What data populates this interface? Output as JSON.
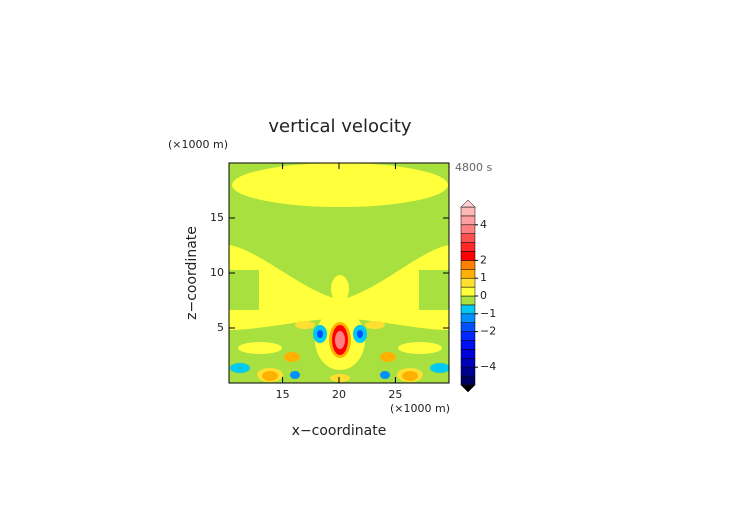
{
  "chart_data": {
    "type": "contour",
    "title": "vertical velocity",
    "time_label": "4800 s",
    "x_label": "x−coordinate",
    "y_label": "z−coordinate",
    "x_unit": "(×1000 m)",
    "y_unit": "(×1000 m)",
    "xlim": [
      10.25,
      29.75
    ],
    "ylim": [
      0,
      20
    ],
    "xticks": [
      15,
      20,
      25
    ],
    "yticks": [
      5,
      10,
      15
    ],
    "colorbar": {
      "levels": [
        -5,
        -4.5,
        -4,
        -3.5,
        -3,
        -2.5,
        -2,
        -1.5,
        -1,
        -0.5,
        0,
        0.5,
        1,
        1.5,
        2,
        2.5,
        3,
        3.5,
        4,
        4.5,
        5
      ],
      "colors": [
        "#000060",
        "#000090",
        "#0000b8",
        "#0000d8",
        "#0010f0",
        "#0028ff",
        "#0050ff",
        "#0090ff",
        "#00c8f0",
        "#a8e040",
        "#ffff3c",
        "#ffe030",
        "#ffb000",
        "#ff8000",
        "#ff0000",
        "#ff2828",
        "#ff5050",
        "#ff8080",
        "#ffa0a0",
        "#ffb8b8"
      ],
      "under_color": "#000000",
      "over_color": "#ffd0d0",
      "ticks": [
        {
          "value": -4,
          "label": "−4"
        },
        {
          "value": -2,
          "label": "−2"
        },
        {
          "value": -1,
          "label": "−1"
        },
        0,
        1,
        2,
        4
      ]
    }
  }
}
